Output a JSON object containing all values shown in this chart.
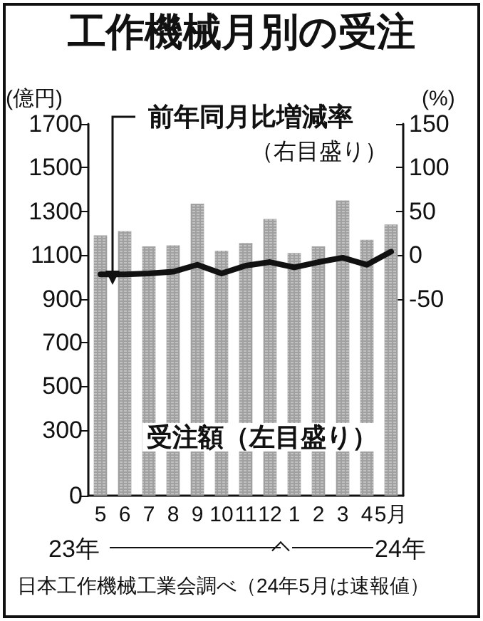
{
  "chart_data": {
    "type": "bar",
    "title": "工作機械月別の受注",
    "ylabel": "(億円)",
    "y2label": "(%)",
    "categories": [
      "5",
      "6",
      "7",
      "8",
      "9",
      "10",
      "11",
      "12",
      "1",
      "2",
      "3",
      "4",
      "5月"
    ],
    "series": [
      {
        "name": "受注額（左目盛り）",
        "color": "#a0a0a0",
        "values": [
          1190,
          1210,
          1140,
          1145,
          1335,
          1120,
          1155,
          1265,
          1110,
          1140,
          1350,
          1170,
          1240
        ]
      },
      {
        "name": "前年同月比増減率",
        "type": "line",
        "axis": "y2",
        "color": "#111111",
        "values": [
          -22,
          -22,
          -21,
          -19,
          -11,
          -21,
          -12,
          -8,
          -14,
          -8,
          -3,
          -11,
          4
        ]
      }
    ],
    "ylim": [
      0,
      1700
    ],
    "yticks": [
      0,
      300,
      500,
      700,
      900,
      1100,
      1300,
      1500,
      1700
    ],
    "y2lim": [
      -275,
      150
    ],
    "y2ticks": [
      -50,
      0,
      50,
      100,
      150
    ],
    "annotations": [
      "（右目盛り）",
      "23年",
      "24年",
      "日本工作機械工業会調べ（24年5月は速報値）"
    ],
    "grid": false,
    "legend": false,
    "marker": "none",
    "line_style": "solid"
  }
}
